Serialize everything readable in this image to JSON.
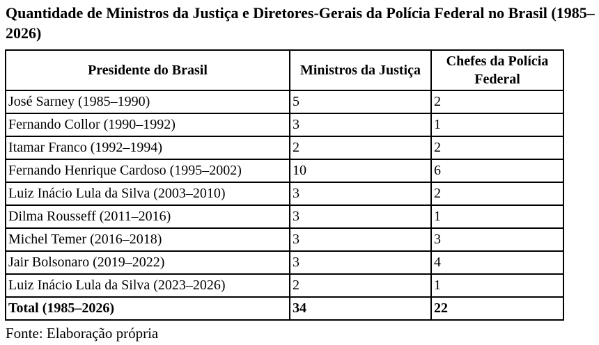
{
  "page": {
    "title": "Quantidade de Ministros da Justiça e Diretores-Gerais da Polícia Federal no Brasil (1985–2026)",
    "source_note": "Fonte: Elaboração própria"
  },
  "colors": {
    "text": "#000000",
    "background": "#ffffff",
    "border": "#000000"
  },
  "table": {
    "columns": [
      "Presidente do Brasil",
      "Ministros da Justiça",
      "Chefes da Polícia Federal"
    ],
    "rows": [
      {
        "president": "José Sarney (1985–1990)",
        "justice_ministers": "5",
        "pf_chiefs": "2"
      },
      {
        "president": "Fernando Collor (1990–1992)",
        "justice_ministers": "3",
        "pf_chiefs": "1"
      },
      {
        "president": "Itamar Franco (1992–1994)",
        "justice_ministers": "2",
        "pf_chiefs": "2"
      },
      {
        "president": "Fernando Henrique Cardoso (1995–2002)",
        "justice_ministers": "10",
        "pf_chiefs": "6"
      },
      {
        "president": "Luiz Inácio Lula da Silva (2003–2010)",
        "justice_ministers": "3",
        "pf_chiefs": "2"
      },
      {
        "president": "Dilma Rousseff (2011–2016)",
        "justice_ministers": "3",
        "pf_chiefs": "1"
      },
      {
        "president": "Michel Temer (2016–2018)",
        "justice_ministers": "3",
        "pf_chiefs": "3"
      },
      {
        "president": "Jair Bolsonaro (2019–2022)",
        "justice_ministers": "3",
        "pf_chiefs": "4"
      },
      {
        "president": "Luiz Inácio Lula da Silva (2023–2026)",
        "justice_ministers": "2",
        "pf_chiefs": "1"
      }
    ],
    "total_row": {
      "label": "Total (1985–2026)",
      "justice_ministers": "34",
      "pf_chiefs": "22"
    }
  }
}
